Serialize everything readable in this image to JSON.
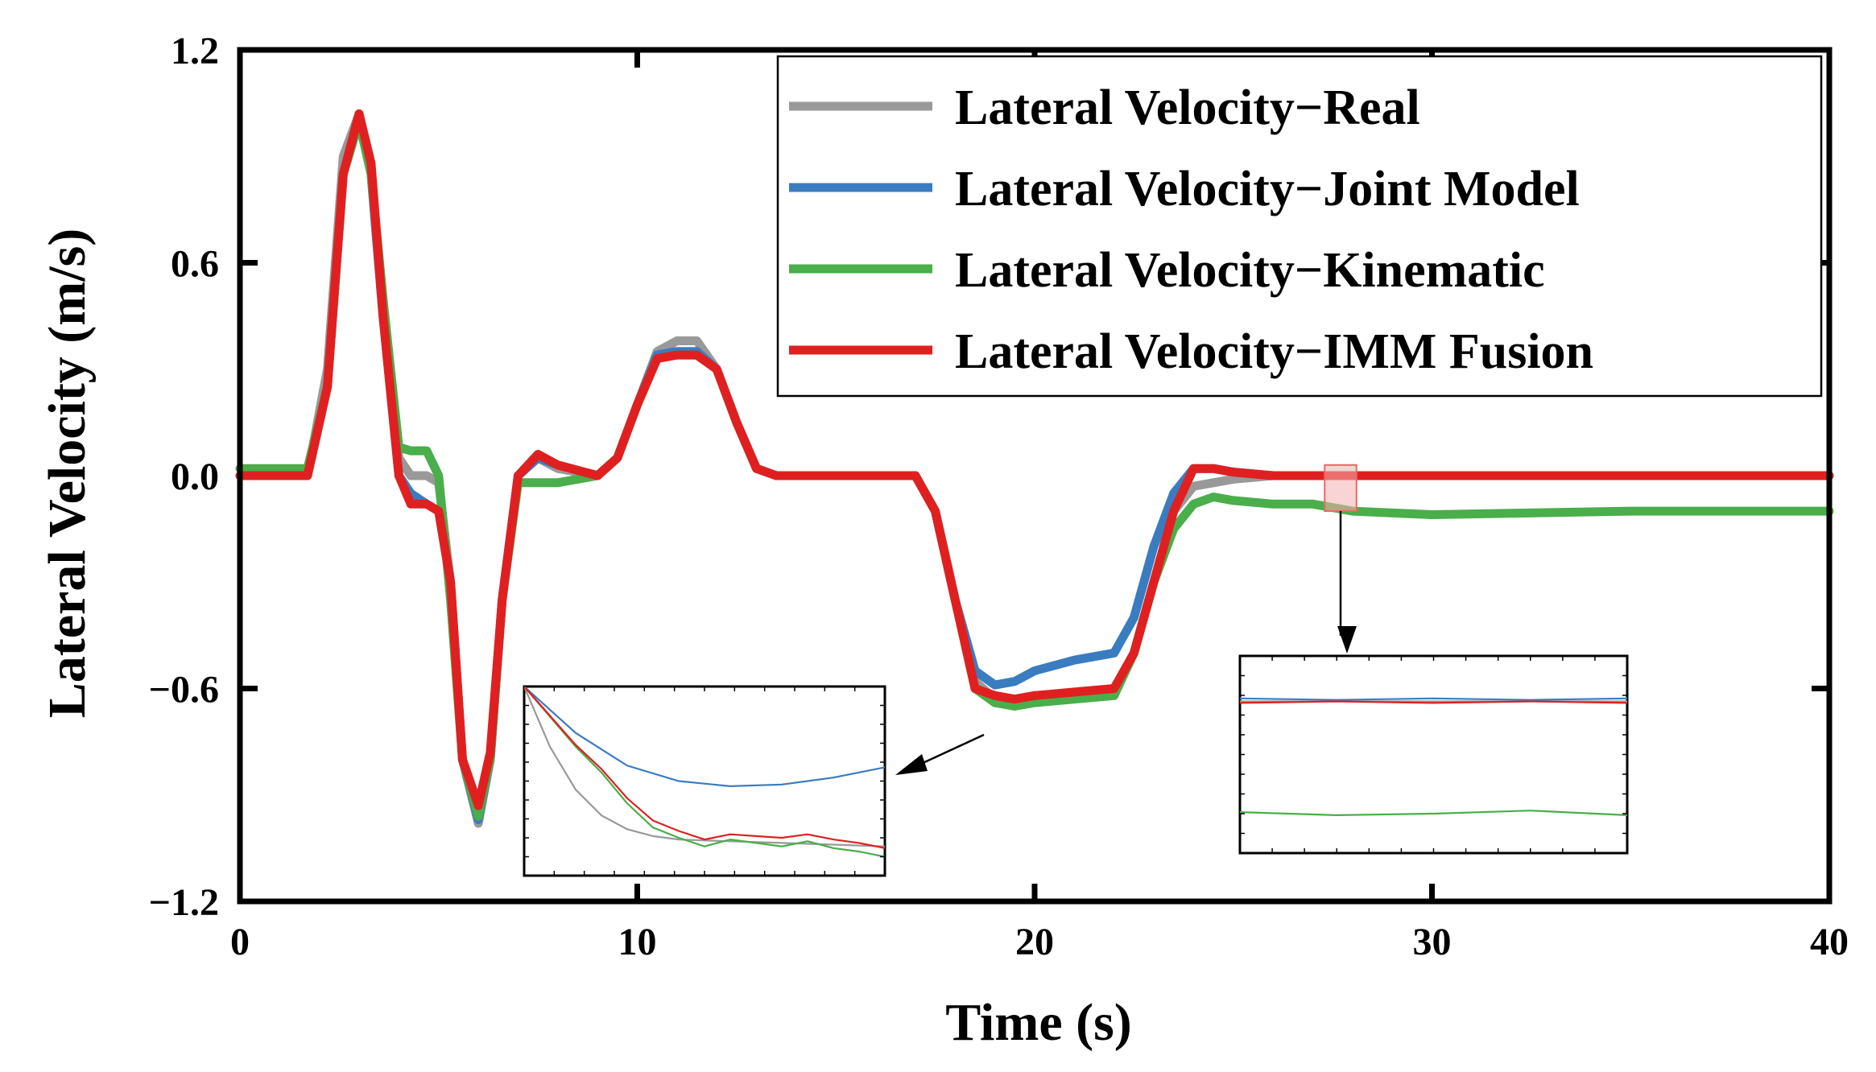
{
  "chart_data": {
    "type": "line",
    "title": "",
    "xlabel": "Time (s)",
    "ylabel": "Lateral Velocity (m/s)",
    "xlim": [
      0,
      40
    ],
    "ylim": [
      -1.2,
      1.2
    ],
    "xticks": [
      0,
      10,
      20,
      30,
      40
    ],
    "xtick_labels": [
      "0",
      "10",
      "20",
      "30",
      "40"
    ],
    "yticks": [
      -1.2,
      -0.6,
      0.0,
      0.6,
      1.2
    ],
    "ytick_labels": [
      "−1.2",
      "−0.6",
      "0.0",
      "0.6",
      "1.2"
    ],
    "grid": false,
    "legend_position": "top-right",
    "series": [
      {
        "name": "Lateral Velocity−Real",
        "color": "#999999",
        "x": [
          0,
          1.7,
          2.2,
          2.6,
          3.0,
          3.3,
          3.6,
          4.0,
          4.3,
          4.7,
          5.0,
          5.3,
          5.6,
          6.0,
          6.3,
          6.6,
          7.0,
          7.5,
          8.0,
          9.0,
          9.5,
          10.0,
          10.5,
          11.0,
          11.5,
          12.0,
          12.5,
          13.0,
          13.5,
          14.0,
          15.0,
          16.0,
          17.0,
          17.5,
          18.0,
          18.5,
          19.0,
          19.5,
          20.0,
          21.0,
          22.0,
          22.5,
          23.0,
          23.5,
          24.0,
          24.5,
          25.0,
          26.0,
          27.0,
          28.0,
          30.0,
          35.0,
          40.0
        ],
        "y": [
          0,
          0,
          0.3,
          0.9,
          1.02,
          0.85,
          0.45,
          0.05,
          0.0,
          0.0,
          -0.02,
          -0.3,
          -0.8,
          -0.98,
          -0.8,
          -0.35,
          0.0,
          0.05,
          0.02,
          0.0,
          0.05,
          0.2,
          0.35,
          0.38,
          0.38,
          0.3,
          0.15,
          0.02,
          0.0,
          0.0,
          0.0,
          0.0,
          0.0,
          -0.1,
          -0.35,
          -0.58,
          -0.63,
          -0.63,
          -0.62,
          -0.62,
          -0.6,
          -0.5,
          -0.3,
          -0.1,
          -0.03,
          -0.02,
          -0.01,
          0.0,
          0.0,
          0.0,
          0.0,
          0.0,
          0.0
        ]
      },
      {
        "name": "Lateral Velocity−Joint Model",
        "color": "#3a7cc0",
        "x": [
          0,
          1.7,
          2.2,
          2.6,
          3.0,
          3.3,
          3.6,
          4.0,
          4.3,
          4.7,
          5.0,
          5.3,
          5.6,
          6.0,
          6.3,
          6.6,
          7.0,
          7.5,
          8.0,
          9.0,
          9.5,
          10.0,
          10.5,
          11.0,
          11.5,
          12.0,
          12.5,
          13.0,
          13.5,
          14.0,
          15.0,
          16.0,
          17.0,
          17.5,
          18.0,
          18.5,
          19.0,
          19.5,
          20.0,
          21.0,
          22.0,
          22.5,
          23.0,
          23.5,
          24.0,
          24.5,
          25.0,
          26.0,
          27.0,
          28.0,
          30.0,
          35.0,
          40.0
        ],
        "y": [
          0,
          0,
          0.25,
          0.85,
          1.0,
          0.85,
          0.45,
          0.0,
          -0.05,
          -0.08,
          -0.1,
          -0.3,
          -0.8,
          -0.97,
          -0.8,
          -0.35,
          0.0,
          0.05,
          0.03,
          0.0,
          0.05,
          0.2,
          0.34,
          0.35,
          0.35,
          0.3,
          0.15,
          0.02,
          0.0,
          0.0,
          0.0,
          0.0,
          0.0,
          -0.1,
          -0.35,
          -0.55,
          -0.59,
          -0.58,
          -0.55,
          -0.52,
          -0.5,
          -0.4,
          -0.2,
          -0.05,
          0.02,
          0.02,
          0.01,
          0.0,
          0.0,
          0.0,
          0.0,
          0.0,
          0.0
        ]
      },
      {
        "name": "Lateral Velocity−Kinematic",
        "color": "#4aae4a",
        "x": [
          0,
          1.7,
          2.2,
          2.6,
          3.0,
          3.3,
          3.6,
          4.0,
          4.3,
          4.7,
          5.0,
          5.3,
          5.6,
          6.0,
          6.3,
          6.6,
          7.0,
          7.5,
          8.0,
          9.0,
          9.5,
          10.0,
          10.5,
          11.0,
          11.5,
          12.0,
          12.5,
          13.0,
          13.5,
          14.0,
          15.0,
          16.0,
          17.0,
          17.5,
          18.0,
          18.5,
          19.0,
          19.5,
          20.0,
          21.0,
          22.0,
          22.5,
          23.0,
          23.5,
          24.0,
          24.5,
          25.0,
          26.0,
          27.0,
          28.0,
          30.0,
          35.0,
          40.0
        ],
        "y": [
          0.02,
          0.02,
          0.25,
          0.85,
          1.0,
          0.85,
          0.5,
          0.08,
          0.07,
          0.07,
          0.0,
          -0.35,
          -0.8,
          -0.96,
          -0.8,
          -0.35,
          -0.02,
          -0.02,
          -0.02,
          0.0,
          0.05,
          0.2,
          0.33,
          0.34,
          0.34,
          0.3,
          0.15,
          0.02,
          0.0,
          0.0,
          0.0,
          0.0,
          0.0,
          -0.1,
          -0.35,
          -0.6,
          -0.64,
          -0.65,
          -0.64,
          -0.63,
          -0.62,
          -0.5,
          -0.3,
          -0.15,
          -0.08,
          -0.06,
          -0.07,
          -0.08,
          -0.08,
          -0.1,
          -0.11,
          -0.1,
          -0.1
        ]
      },
      {
        "name": "Lateral Velocity−IMM Fusion",
        "color": "#e02020",
        "x": [
          0,
          1.7,
          2.2,
          2.6,
          3.0,
          3.3,
          3.6,
          4.0,
          4.3,
          4.7,
          5.0,
          5.3,
          5.6,
          6.0,
          6.3,
          6.6,
          7.0,
          7.5,
          8.0,
          9.0,
          9.5,
          10.0,
          10.5,
          11.0,
          11.5,
          12.0,
          12.5,
          13.0,
          13.5,
          14.0,
          15.0,
          16.0,
          17.0,
          17.5,
          18.0,
          18.5,
          19.0,
          19.5,
          20.0,
          21.0,
          22.0,
          22.5,
          23.0,
          23.5,
          24.0,
          24.5,
          25.0,
          26.0,
          27.0,
          28.0,
          30.0,
          35.0,
          40.0
        ],
        "y": [
          0,
          0,
          0.25,
          0.85,
          1.02,
          0.88,
          0.45,
          0.0,
          -0.08,
          -0.08,
          -0.1,
          -0.3,
          -0.8,
          -0.93,
          -0.78,
          -0.35,
          0.0,
          0.06,
          0.03,
          0.0,
          0.05,
          0.2,
          0.33,
          0.34,
          0.34,
          0.3,
          0.15,
          0.02,
          0.0,
          0.0,
          0.0,
          0.0,
          0.0,
          -0.1,
          -0.35,
          -0.6,
          -0.62,
          -0.63,
          -0.62,
          -0.61,
          -0.6,
          -0.5,
          -0.3,
          -0.1,
          0.02,
          0.02,
          0.01,
          0.0,
          0.0,
          0.0,
          0.0,
          0.0,
          0.0
        ]
      }
    ],
    "insets": [
      {
        "name": "zoom-trough",
        "source_region": "x ≈ 18.6–20.0 s, y ≈ −0.66 to −0.55 m/s",
        "xlim": [
          18.6,
          20.0
        ],
        "ylim": [
          -0.66,
          -0.55
        ],
        "series": [
          {
            "name": "Real",
            "color": "#999999",
            "x": [
              18.6,
              18.7,
              18.8,
              18.9,
              19.0,
              19.1,
              19.2,
              19.4,
              19.6,
              19.8,
              20.0
            ],
            "y": [
              -0.55,
              -0.585,
              -0.61,
              -0.625,
              -0.633,
              -0.637,
              -0.639,
              -0.64,
              -0.641,
              -0.642,
              -0.643
            ]
          },
          {
            "name": "Joint Model",
            "color": "#3a7cc0",
            "x": [
              18.6,
              18.8,
              19.0,
              19.2,
              19.4,
              19.6,
              19.8,
              20.0
            ],
            "y": [
              -0.55,
              -0.577,
              -0.596,
              -0.605,
              -0.608,
              -0.607,
              -0.603,
              -0.597
            ]
          },
          {
            "name": "Kinematic",
            "color": "#4aae4a",
            "x": [
              18.6,
              18.8,
              18.9,
              19.0,
              19.1,
              19.2,
              19.3,
              19.4,
              19.5,
              19.6,
              19.7,
              19.8,
              19.9,
              20.0
            ],
            "y": [
              -0.55,
              -0.585,
              -0.6,
              -0.618,
              -0.632,
              -0.638,
              -0.643,
              -0.639,
              -0.641,
              -0.643,
              -0.64,
              -0.644,
              -0.646,
              -0.649
            ]
          },
          {
            "name": "IMM Fusion",
            "color": "#e02020",
            "x": [
              18.6,
              18.8,
              18.9,
              19.0,
              19.1,
              19.2,
              19.3,
              19.4,
              19.5,
              19.6,
              19.7,
              19.8,
              19.9,
              20.0
            ],
            "y": [
              -0.55,
              -0.584,
              -0.598,
              -0.615,
              -0.628,
              -0.634,
              -0.639,
              -0.636,
              -0.637,
              -0.638,
              -0.636,
              -0.639,
              -0.641,
              -0.644
            ]
          }
        ]
      },
      {
        "name": "zoom-steady",
        "source_region": "x ≈ 27.3–28.1 s, y ≈ −0.10 to 0.03 m/s",
        "xlim": [
          27.3,
          28.1
        ],
        "ylim": [
          -0.1,
          0.03
        ],
        "series": [
          {
            "name": "Real",
            "color": "#999999",
            "x": [
              27.3,
              28.1
            ],
            "y": [
              0.0,
              0.0
            ]
          },
          {
            "name": "Joint Model",
            "color": "#3a7cc0",
            "x": [
              27.3,
              27.5,
              27.7,
              27.9,
              28.1
            ],
            "y": [
              0.002,
              0.001,
              0.002,
              0.001,
              0.002
            ]
          },
          {
            "name": "IMM Fusion",
            "color": "#e02020",
            "x": [
              27.3,
              27.5,
              27.7,
              27.9,
              28.1
            ],
            "y": [
              -0.001,
              0.0,
              -0.001,
              0.0,
              -0.001
            ]
          },
          {
            "name": "Kinematic",
            "color": "#4aae4a",
            "x": [
              27.3,
              27.5,
              27.7,
              27.9,
              28.1
            ],
            "y": [
              -0.073,
              -0.075,
              -0.074,
              -0.072,
              -0.075
            ]
          }
        ]
      }
    ]
  }
}
